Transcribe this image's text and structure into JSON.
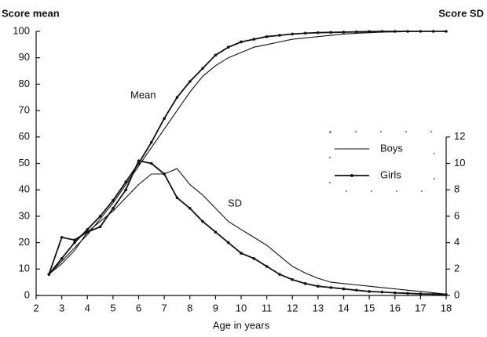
{
  "chart_data": {
    "type": "line",
    "ylabel": "Score mean",
    "y2label": "Score SD",
    "xlabel": "Age in years",
    "annotations": [
      "Mean",
      "SD"
    ],
    "x": [
      2.5,
      3,
      3.5,
      4,
      4.5,
      5,
      5.5,
      6,
      6.5,
      7,
      7.5,
      8,
      8.5,
      9,
      9.5,
      10,
      10.5,
      11,
      11.5,
      12,
      12.5,
      13,
      13.5,
      14,
      14.5,
      15,
      15.5,
      16,
      16.5,
      17,
      17.5,
      18
    ],
    "series": [
      {
        "name": "Boys",
        "color": "#111111",
        "marker": false,
        "values": [
          8,
          13,
          18,
          23,
          29,
          35,
          42,
          49,
          56,
          63,
          70,
          77,
          83,
          87,
          90,
          92,
          94,
          95,
          96,
          97,
          97.5,
          98,
          98.5,
          99,
          99.3,
          99.5,
          99.7,
          99.8,
          99.9,
          100,
          100,
          100
        ]
      },
      {
        "name": "Girls",
        "color": "#111111",
        "marker": true,
        "values": [
          8,
          14,
          20,
          25,
          30,
          36,
          43,
          50,
          58,
          67,
          75,
          81,
          86,
          91,
          94,
          96,
          97,
          98,
          98.5,
          99,
          99.3,
          99.5,
          99.6,
          99.7,
          99.8,
          99.9,
          100,
          100,
          100,
          100,
          100,
          100
        ]
      },
      {
        "axis": "y2",
        "color": "#111111",
        "marker": false,
        "values": [
          1.6,
          2.4,
          3.4,
          4.8,
          5.6,
          6.4,
          7.4,
          8.4,
          9.2,
          9.2,
          9.6,
          8.4,
          7.6,
          6.6,
          5.6,
          5.0,
          4.4,
          3.8,
          3.0,
          2.2,
          1.7,
          1.3,
          1.0,
          0.9,
          0.8,
          0.7,
          0.6,
          0.5,
          0.4,
          0.3,
          0.2,
          0.1
        ]
      },
      {
        "axis": "y2",
        "color": "#111111",
        "marker": true,
        "values": [
          1.6,
          4.4,
          4.2,
          4.8,
          5.2,
          6.6,
          8.0,
          10.2,
          10.0,
          9.2,
          7.4,
          6.6,
          5.6,
          4.8,
          4.0,
          3.2,
          2.8,
          2.2,
          1.6,
          1.2,
          0.9,
          0.7,
          0.6,
          0.5,
          0.4,
          0.3,
          0.26,
          0.2,
          0.16,
          0.12,
          0.1,
          0.06
        ]
      }
    ],
    "xlim": [
      2,
      18
    ],
    "xticks": [
      2,
      3,
      4,
      5,
      6,
      7,
      8,
      9,
      10,
      11,
      12,
      13,
      14,
      15,
      16,
      17,
      18
    ],
    "ylim": [
      0,
      100
    ],
    "yticks": [
      0,
      10,
      20,
      30,
      40,
      50,
      60,
      70,
      80,
      90,
      100
    ],
    "y2lim": [
      0,
      20
    ],
    "y2ticks": [
      0,
      2,
      4,
      6,
      8,
      10,
      12
    ],
    "grid": false
  }
}
